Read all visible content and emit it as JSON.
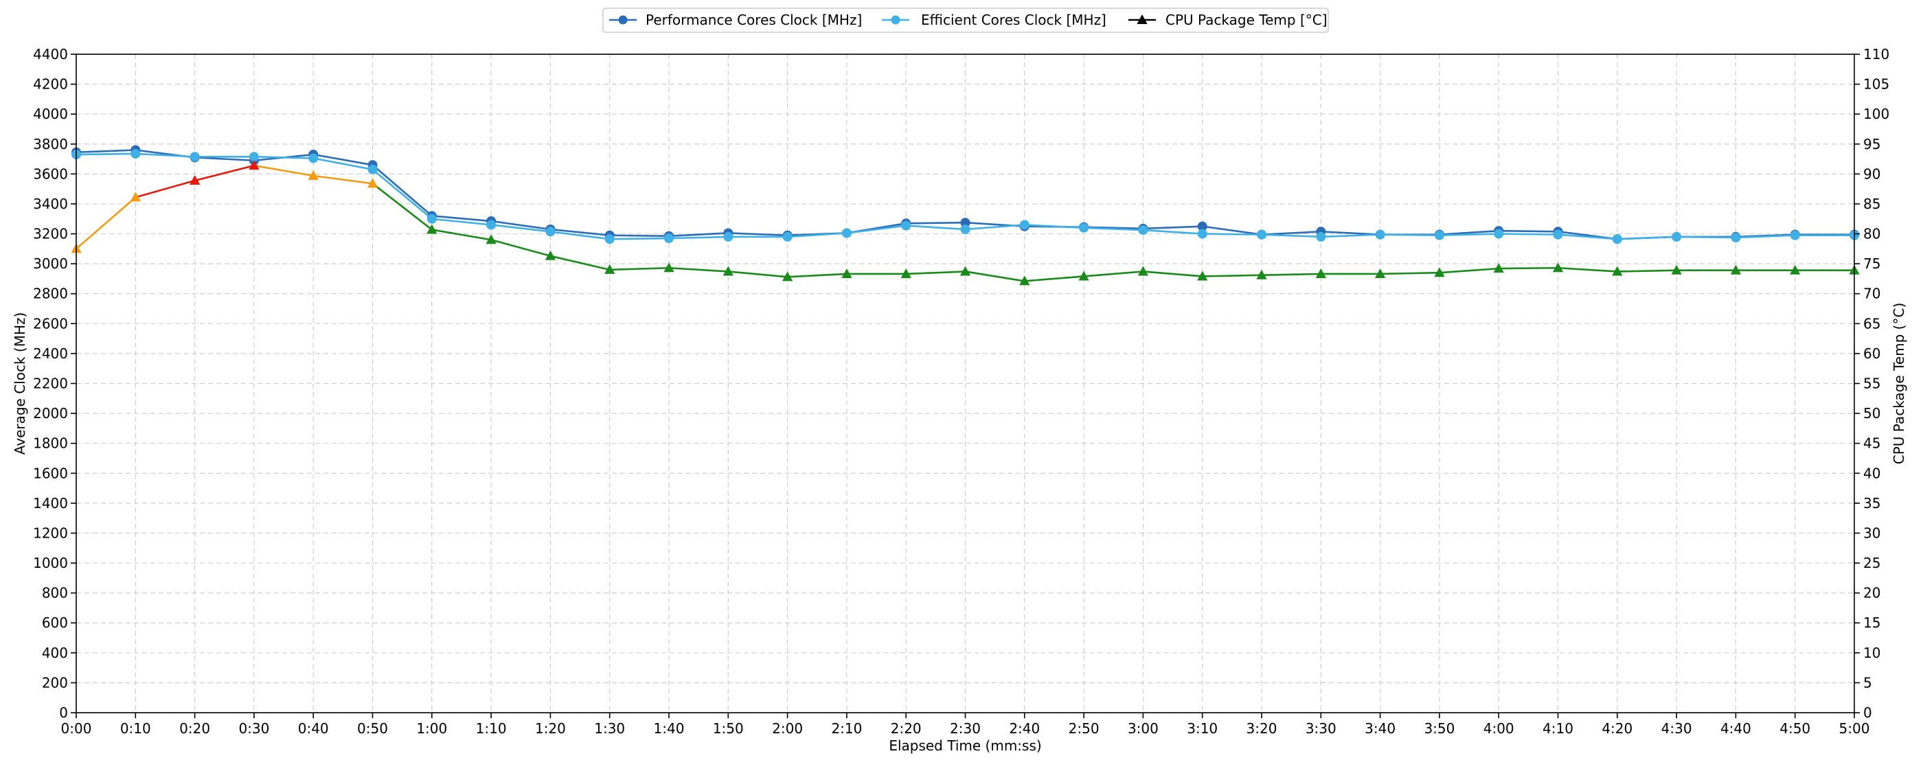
{
  "chart_data": {
    "type": "line",
    "xlabel": "Elapsed Time (mm:ss)",
    "ylabel": "Average Clock (MHz)",
    "ylabel_right": "CPU Package Temp (°C)",
    "x": [
      "0:00",
      "0:10",
      "0:20",
      "0:30",
      "0:40",
      "0:50",
      "1:00",
      "1:10",
      "1:20",
      "1:30",
      "1:40",
      "1:50",
      "2:00",
      "2:10",
      "2:20",
      "2:30",
      "2:40",
      "2:50",
      "3:00",
      "3:10",
      "3:20",
      "3:30",
      "3:40",
      "3:50",
      "4:00",
      "4:10",
      "4:20",
      "4:30",
      "4:40",
      "4:50",
      "5:00"
    ],
    "ylim": [
      0,
      4400
    ],
    "yticks": [
      0,
      200,
      400,
      600,
      800,
      1000,
      1200,
      1400,
      1600,
      1800,
      2000,
      2200,
      2400,
      2600,
      2800,
      3000,
      3200,
      3400,
      3600,
      3800,
      4000,
      4200,
      4400
    ],
    "ylim_right": [
      0,
      110
    ],
    "yticks_right": [
      0,
      5,
      10,
      15,
      20,
      25,
      30,
      35,
      40,
      45,
      50,
      55,
      60,
      65,
      70,
      75,
      80,
      85,
      90,
      95,
      100,
      105,
      110
    ],
    "grid": true,
    "legend_position": "top-center",
    "series": [
      {
        "name": "Performance Cores Clock [MHz]",
        "axis": "left",
        "color": "#2b6cb8",
        "marker": "circle",
        "values": [
          3745,
          3760,
          3710,
          3690,
          3730,
          3660,
          3320,
          3285,
          3230,
          3190,
          3185,
          3205,
          3190,
          3205,
          3270,
          3275,
          3250,
          3245,
          3235,
          3250,
          3195,
          3215,
          3195,
          3195,
          3220,
          3215,
          3165,
          3180,
          3180,
          3195,
          3195
        ]
      },
      {
        "name": "Efficient Cores Clock [MHz]",
        "axis": "left",
        "color": "#3fb0e6",
        "marker": "circle",
        "values": [
          3730,
          3735,
          3715,
          3715,
          3705,
          3630,
          3300,
          3260,
          3215,
          3165,
          3170,
          3180,
          3180,
          3205,
          3255,
          3230,
          3260,
          3240,
          3225,
          3200,
          3195,
          3180,
          3195,
          3190,
          3200,
          3195,
          3165,
          3180,
          3175,
          3190,
          3190
        ]
      },
      {
        "name": "CPU Package Temp [°C]",
        "axis": "right",
        "color": "#000000",
        "marker": "triangle",
        "values": [
          77.5,
          86.1,
          88.9,
          91.4,
          89.7,
          88.4,
          80.7,
          79,
          76.3,
          74,
          74.3,
          73.7,
          72.8,
          73.3,
          73.3,
          73.7,
          72.1,
          72.9,
          73.7,
          72.9,
          73.1,
          73.3,
          73.3,
          73.5,
          74.2,
          74.3,
          73.7,
          73.9,
          73.9,
          73.9,
          73.9
        ],
        "segment_colors": [
          "#f39c12",
          "#f39c12",
          "#e8180c",
          "#e8180c",
          "#f39c12",
          "#f39c12",
          "#1a8a1a",
          "#1a8a1a",
          "#1a8a1a",
          "#1a8a1a",
          "#1a8a1a",
          "#1a8a1a",
          "#1a8a1a",
          "#1a8a1a",
          "#1a8a1a",
          "#1a8a1a",
          "#1a8a1a",
          "#1a8a1a",
          "#1a8a1a",
          "#1a8a1a",
          "#1a8a1a",
          "#1a8a1a",
          "#1a8a1a",
          "#1a8a1a",
          "#1a8a1a",
          "#1a8a1a",
          "#1a8a1a",
          "#1a8a1a",
          "#1a8a1a",
          "#1a8a1a",
          "#1a8a1a"
        ]
      }
    ]
  }
}
